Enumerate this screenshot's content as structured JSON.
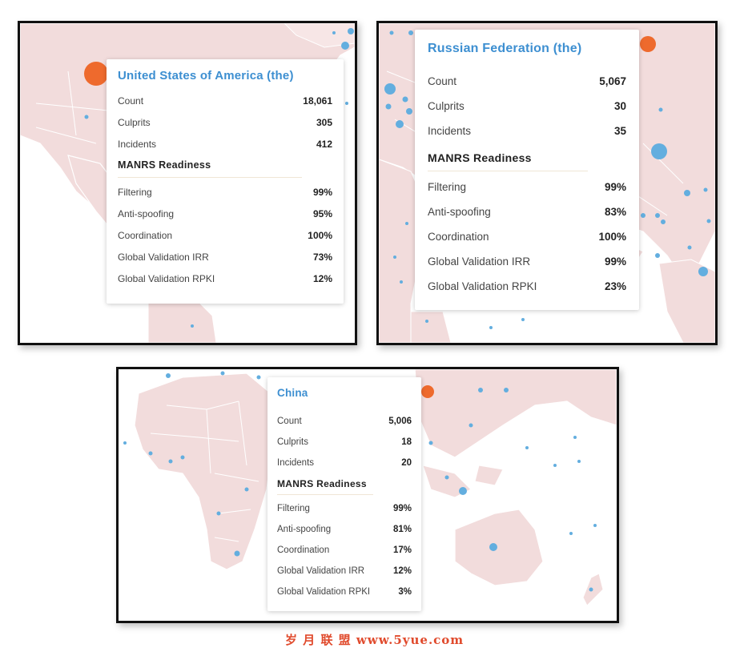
{
  "colors": {
    "title_blue": "#3d8fd1",
    "marker_orange": "#ee6a2d",
    "marker_blue": "#63aedf",
    "land_pink": "#f2dcdc",
    "ocean": "#ffffff"
  },
  "panels": [
    {
      "country": "United States of America (the)",
      "stats": [
        {
          "label": "Count",
          "value": "18,061"
        },
        {
          "label": "Culprits",
          "value": "305"
        },
        {
          "label": "Incidents",
          "value": "412"
        }
      ],
      "readiness_heading": "MANRS Readiness",
      "readiness": [
        {
          "label": "Filtering",
          "value": "99%"
        },
        {
          "label": "Anti-spoofing",
          "value": "95%"
        },
        {
          "label": "Coordination",
          "value": "100%"
        },
        {
          "label": "Global Validation IRR",
          "value": "73%"
        },
        {
          "label": "Global Validation RPKI",
          "value": "12%"
        }
      ]
    },
    {
      "country": "Russian Federation (the)",
      "stats": [
        {
          "label": "Count",
          "value": "5,067"
        },
        {
          "label": "Culprits",
          "value": "30"
        },
        {
          "label": "Incidents",
          "value": "35"
        }
      ],
      "readiness_heading": "MANRS Readiness",
      "readiness": [
        {
          "label": "Filtering",
          "value": "99%"
        },
        {
          "label": "Anti-spoofing",
          "value": "83%"
        },
        {
          "label": "Coordination",
          "value": "100%"
        },
        {
          "label": "Global Validation IRR",
          "value": "99%"
        },
        {
          "label": "Global Validation RPKI",
          "value": "23%"
        }
      ]
    },
    {
      "country": "China",
      "stats": [
        {
          "label": "Count",
          "value": "5,006"
        },
        {
          "label": "Culprits",
          "value": "18"
        },
        {
          "label": "Incidents",
          "value": "20"
        }
      ],
      "readiness_heading": "MANRS Readiness",
      "readiness": [
        {
          "label": "Filtering",
          "value": "99%"
        },
        {
          "label": "Anti-spoofing",
          "value": "81%"
        },
        {
          "label": "Coordination",
          "value": "17%"
        },
        {
          "label": "Global Validation IRR",
          "value": "12%"
        },
        {
          "label": "Global Validation RPKI",
          "value": "3%"
        }
      ]
    }
  ],
  "watermark": "岁 月 联 盟  www.5yue.com"
}
